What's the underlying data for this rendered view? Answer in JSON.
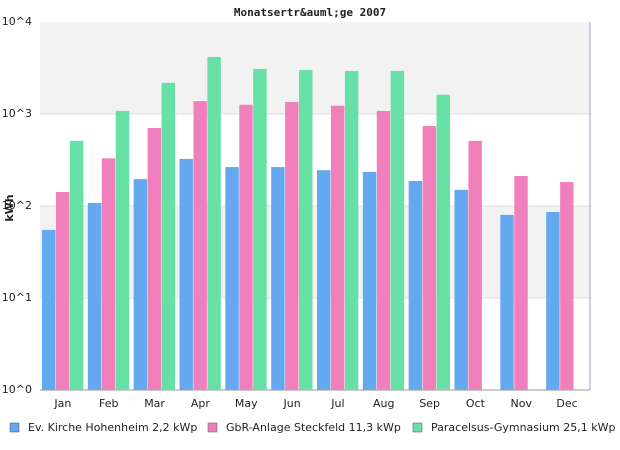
{
  "chart_data": {
    "type": "bar",
    "title": "Monatsertr&auml;ge 2007",
    "y_label": "kWh",
    "categories": [
      "Jan",
      "Feb",
      "Mar",
      "Apr",
      "May",
      "Jun",
      "Jul",
      "Aug",
      "Sep",
      "Oct",
      "Nov",
      "Dec"
    ],
    "series": [
      {
        "name": "Ev. Kirche Hohenheim 2,2 kWp",
        "color": "#64a8f0",
        "values": [
          55,
          108,
          196,
          325,
          265,
          265,
          245,
          235,
          187,
          150,
          80,
          86
        ]
      },
      {
        "name": "GbR-Anlage Steckfeld 11,3 kWp",
        "color": "#f080bc",
        "values": [
          142,
          330,
          705,
          1380,
          1260,
          1350,
          1230,
          1080,
          740,
          510,
          212,
          182
        ]
      },
      {
        "name": "Paracelsus-Gymnasium 25,1 kWp",
        "color": "#66e0a4",
        "values": [
          510,
          1080,
          2180,
          4170,
          3090,
          3000,
          2940,
          2940,
          1620,
          null,
          null,
          null
        ]
      }
    ],
    "ylim": [
      1,
      10000
    ],
    "log_y": true,
    "yticks": [
      {
        "value": 1,
        "label": "10^0"
      },
      {
        "value": 10,
        "label": "10^1"
      },
      {
        "value": 100,
        "label": "10^2"
      },
      {
        "value": 1000,
        "label": "10^3"
      },
      {
        "value": 10000,
        "label": "10^4"
      }
    ],
    "grid": true,
    "legend": "bottom"
  }
}
